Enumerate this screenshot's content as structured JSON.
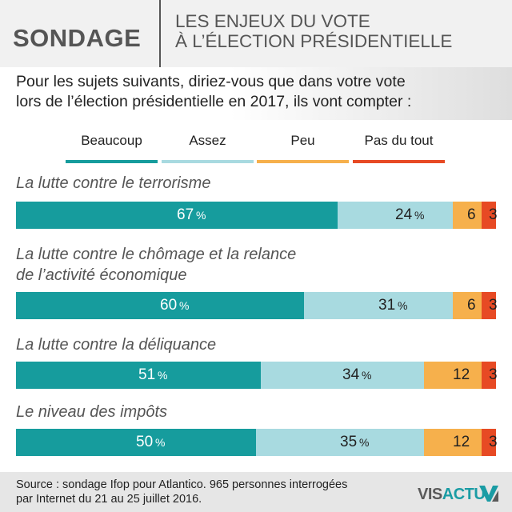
{
  "header": {
    "kicker": "SONDAGE",
    "title_line1": "LES ENJEUX DU VOTE",
    "title_line2": "À L’ÉLECTION PRÉSIDENTIELLE"
  },
  "question": {
    "line1": "Pour les sujets suivants, diriez-vous que dans votre vote",
    "line2": "lors de l’élection présidentielle en 2017, ils vont compter :"
  },
  "colors": {
    "beaucoup": "#169c9d",
    "assez": "#a8dae0",
    "peu": "#f6b04c",
    "pas_du_tout": "#e74a24"
  },
  "chart_data": {
    "type": "bar",
    "orientation": "horizontal",
    "stacked": true,
    "title": "Pour les sujets suivants, diriez-vous que dans votre vote lors de l’élection présidentielle en 2017, ils vont compter :",
    "categories": [
      "La lutte contre le terrorisme",
      "La lutte contre le chômage et la relance de l’activité économique",
      "La lutte contre la déliquance",
      "Le niveau des impôts"
    ],
    "series": [
      {
        "name": "Beaucoup",
        "values": [
          67,
          60,
          51,
          50
        ]
      },
      {
        "name": "Assez",
        "values": [
          24,
          31,
          34,
          35
        ]
      },
      {
        "name": "Peu",
        "values": [
          6,
          6,
          12,
          12
        ]
      },
      {
        "name": "Pas du tout",
        "values": [
          3,
          3,
          3,
          3
        ]
      }
    ],
    "unit": "%",
    "xlim": [
      0,
      100
    ],
    "legend": "top"
  },
  "footer": {
    "source_line1": "Source : sondage Ifop pour Atlantico. 965 personnes interrogées",
    "source_line2": "par Internet du 21 au 25 juillet 2016.",
    "brand_part1": "VIS",
    "brand_part2": "ACTU"
  }
}
